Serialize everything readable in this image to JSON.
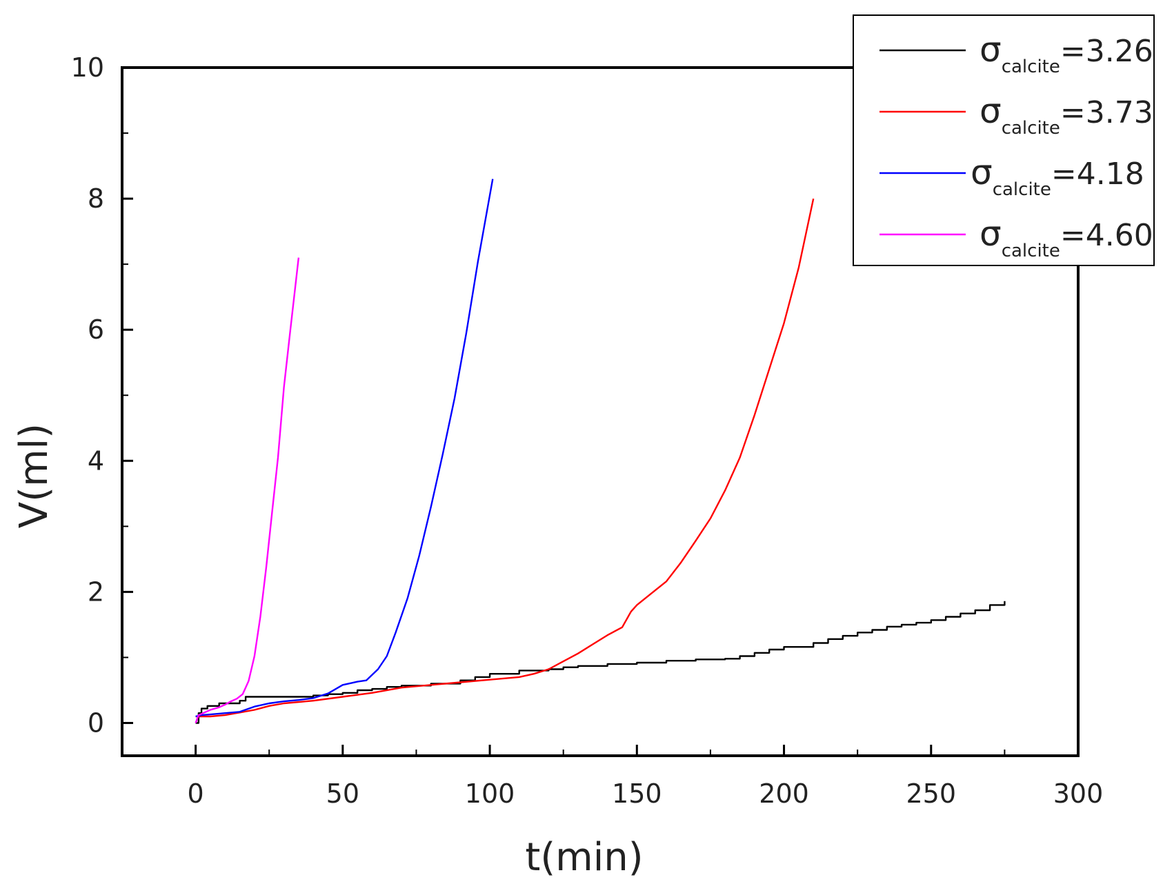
{
  "chart_data": {
    "type": "line",
    "xlabel": "t(min)",
    "ylabel": "V(ml)",
    "xlim": [
      -25,
      300
    ],
    "ylim": [
      -0.5,
      10
    ],
    "xticks": [
      0,
      50,
      100,
      150,
      200,
      250,
      300
    ],
    "yticks": [
      0,
      2,
      4,
      6,
      8,
      10
    ],
    "grid": false,
    "legend_position": "top-right",
    "series": [
      {
        "name": "σcalcite=3.26",
        "symbol": "σ",
        "subscript": "calcite",
        "value_text": "=3.26",
        "color": "#000000",
        "step": true,
        "x": [
          0,
          1,
          2,
          4,
          8,
          15,
          17,
          25,
          30,
          40,
          45,
          50,
          55,
          60,
          65,
          70,
          80,
          90,
          95,
          100,
          110,
          120,
          125,
          130,
          140,
          150,
          160,
          170,
          180,
          185,
          190,
          195,
          200,
          210,
          215,
          220,
          225,
          230,
          235,
          240,
          245,
          250,
          255,
          260,
          265,
          270,
          275
        ],
        "y": [
          0,
          0.15,
          0.22,
          0.26,
          0.3,
          0.34,
          0.4,
          0.4,
          0.4,
          0.42,
          0.44,
          0.46,
          0.5,
          0.52,
          0.55,
          0.57,
          0.6,
          0.65,
          0.7,
          0.75,
          0.8,
          0.82,
          0.85,
          0.87,
          0.9,
          0.92,
          0.95,
          0.97,
          0.98,
          1.02,
          1.07,
          1.12,
          1.16,
          1.22,
          1.28,
          1.33,
          1.38,
          1.42,
          1.47,
          1.5,
          1.53,
          1.57,
          1.62,
          1.67,
          1.72,
          1.8,
          1.86
        ]
      },
      {
        "name": "σcalcite=3.73",
        "symbol": "σ",
        "subscript": "calcite",
        "value_text": "=3.73",
        "color": "#ff0000",
        "step": false,
        "x": [
          0,
          5,
          10,
          15,
          20,
          25,
          30,
          40,
          50,
          60,
          70,
          80,
          90,
          100,
          110,
          115,
          120,
          125,
          130,
          135,
          140,
          145,
          148,
          150,
          155,
          160,
          165,
          170,
          175,
          180,
          185,
          190,
          195,
          200,
          205,
          210
        ],
        "y": [
          0.1,
          0.1,
          0.12,
          0.16,
          0.2,
          0.26,
          0.3,
          0.34,
          0.4,
          0.46,
          0.54,
          0.58,
          0.62,
          0.66,
          0.7,
          0.75,
          0.82,
          0.94,
          1.06,
          1.2,
          1.34,
          1.46,
          1.7,
          1.8,
          1.98,
          2.16,
          2.45,
          2.78,
          3.12,
          3.55,
          4.05,
          4.7,
          5.4,
          6.1,
          6.95,
          8.0
        ]
      },
      {
        "name": "σcalcite=4.18",
        "symbol": "σ",
        "subscript": "calcite",
        "value_text": "=4.18",
        "color": "#0000ff",
        "step": false,
        "x": [
          0,
          2,
          5,
          10,
          15,
          20,
          25,
          30,
          35,
          40,
          45,
          50,
          55,
          58,
          62,
          65,
          68,
          72,
          76,
          80,
          84,
          88,
          92,
          96,
          101
        ],
        "y": [
          0.1,
          0.12,
          0.13,
          0.15,
          0.17,
          0.25,
          0.3,
          0.33,
          0.35,
          0.38,
          0.45,
          0.58,
          0.63,
          0.65,
          0.82,
          1.02,
          1.38,
          1.9,
          2.55,
          3.3,
          4.1,
          4.95,
          5.95,
          7.05,
          8.3
        ]
      },
      {
        "name": "σcalcite=4.60",
        "symbol": "σ",
        "subscript": "calcite",
        "value_text": "=4.60",
        "color": "#ff00ff",
        "step": false,
        "x": [
          0,
          1,
          3,
          5,
          8,
          10,
          12,
          14,
          16,
          18,
          20,
          22,
          24,
          26,
          28,
          30,
          32,
          35
        ],
        "y": [
          0,
          0.12,
          0.16,
          0.2,
          0.24,
          0.28,
          0.33,
          0.37,
          0.44,
          0.64,
          1.02,
          1.62,
          2.38,
          3.22,
          4.05,
          5.12,
          5.92,
          7.1
        ]
      }
    ]
  }
}
